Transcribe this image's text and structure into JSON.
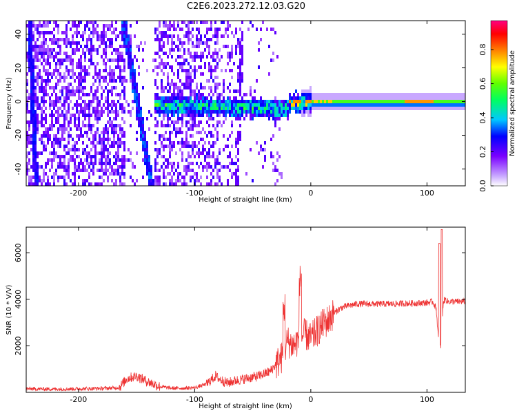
{
  "title": "C2E6.2023.272.12.03.G20",
  "colors": {
    "snr_line": "#ee3333",
    "axis": "#000000"
  },
  "chart_data": [
    {
      "type": "heatmap",
      "xlabel": "Height of straight line (km)",
      "ylabel": "Frequency (Hz)",
      "xlim": [
        -245,
        133
      ],
      "ylim": [
        -50,
        48
      ],
      "xticks": [
        -200,
        -100,
        0,
        100
      ],
      "yticks": [
        -40,
        -20,
        0,
        20,
        40
      ],
      "colorbar": {
        "label": "Normalized spectral amplitude",
        "range": [
          0,
          0.97
        ],
        "ticks": [
          0.0,
          0.2,
          0.4,
          0.6,
          0.8
        ],
        "colormap": "rainbow"
      }
    },
    {
      "type": "line",
      "xlabel": "Height of straight line (km)",
      "ylabel": "SNR (10 * V/V)",
      "xlim": [
        -245,
        133
      ],
      "ylim": [
        0,
        7100
      ],
      "xticks": [
        -200,
        -100,
        0,
        100
      ],
      "yticks": [
        2000,
        4000,
        6000
      ],
      "series": [
        {
          "x": [
            -245,
            -220,
            -200,
            -180,
            -165,
            -158,
            -150,
            -140,
            -130,
            -120,
            -110,
            -100,
            -90,
            -82,
            -78,
            -72,
            -65,
            -55,
            -45,
            -35,
            -25,
            -20,
            -15,
            -10,
            -5,
            0,
            5,
            10,
            15,
            20,
            25,
            30,
            40,
            50,
            60,
            70,
            80,
            90,
            100,
            105,
            108,
            110,
            112,
            114,
            116,
            118,
            120,
            125,
            133
          ],
          "y": [
            150,
            140,
            150,
            170,
            200,
            600,
            700,
            450,
            250,
            180,
            180,
            200,
            350,
            700,
            550,
            400,
            500,
            600,
            700,
            900,
            1500,
            2200,
            2000,
            2300,
            2500,
            2300,
            2600,
            2900,
            3100,
            3400,
            3600,
            3700,
            3800,
            3800,
            3800,
            3800,
            3820,
            3830,
            3850,
            3900,
            3600,
            2200,
            1900,
            3900,
            4000,
            3900,
            3900,
            3900,
            3900
          ]
        }
      ]
    }
  ]
}
